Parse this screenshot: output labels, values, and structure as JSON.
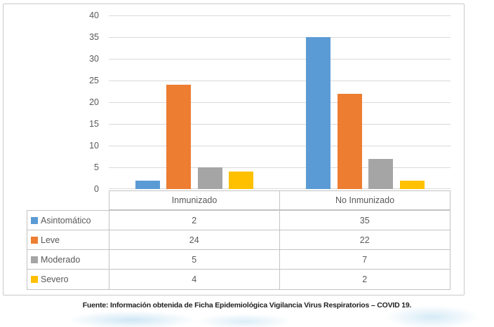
{
  "chart_data": {
    "type": "bar",
    "title": "",
    "xlabel": "",
    "ylabel": "",
    "categories": [
      "Inmunizado",
      "No Inmunizado"
    ],
    "series": [
      {
        "name": "Asintomático",
        "color": "#5B9BD5",
        "values": [
          2,
          35
        ]
      },
      {
        "name": "Leve",
        "color": "#ED7D31",
        "values": [
          24,
          22
        ]
      },
      {
        "name": "Moderado",
        "color": "#A5A5A5",
        "values": [
          5,
          7
        ]
      },
      {
        "name": "Severo",
        "color": "#FFC000",
        "values": [
          4,
          2
        ]
      }
    ],
    "ylim": [
      0,
      40
    ],
    "ytick_step": 5,
    "grid": true,
    "legend_position": "data-table-left"
  },
  "footer": {
    "source_text": "Fuente: Información obtenida de Ficha Epidemiológica Vigilancia Virus Respiratorios – COVID 19."
  },
  "colors": {
    "axis_text": "#595959",
    "gridline": "#d9d9d9",
    "table_border": "#c3c3c3",
    "chart_border": "#c9c9c9",
    "watermark": "#60afdd"
  }
}
